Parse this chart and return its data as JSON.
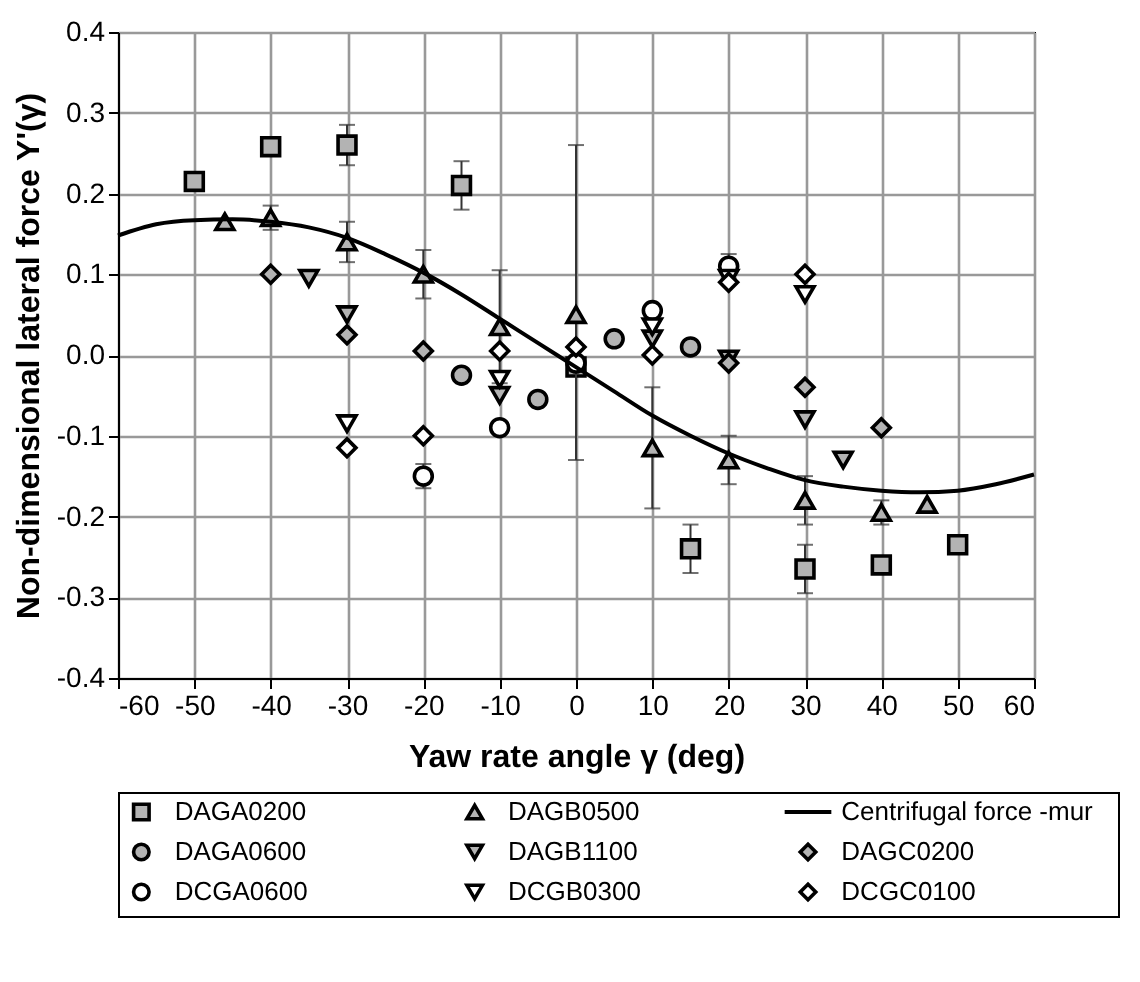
{
  "chart_data": {
    "type": "scatter",
    "xlabel": "Yaw rate angle γ (deg)",
    "ylabel": "Non-dimensional lateral force Y'(γ)",
    "xlim": [
      -60,
      60
    ],
    "xticks": [
      -60,
      -50,
      -40,
      -30,
      -20,
      -10,
      0,
      10,
      20,
      30,
      40,
      50,
      60
    ],
    "ylim": [
      -0.4,
      0.4
    ],
    "yticks": [
      {
        "value": -0.4,
        "label": "-0.4"
      },
      {
        "value": -0.3,
        "label": "-0.3"
      },
      {
        "value": -0.2,
        "label": "-0.2"
      },
      {
        "value": -0.1,
        "label": "-0.1"
      },
      {
        "value": 0,
        "label": "0.0"
      },
      {
        "value": 0.1,
        "label": "0.1"
      },
      {
        "value": 0.2,
        "label": "0.2"
      },
      {
        "value": 0.3,
        "label": "0.3"
      },
      {
        "value": 0.4,
        "label": "0.4"
      }
    ],
    "grid": true,
    "legend": "bottom",
    "series": [
      {
        "name": "DAGA0200",
        "marker": "square",
        "color": "#b3b3b3",
        "x": [
          -50,
          -40,
          -30,
          -15,
          0,
          15,
          30,
          40,
          50
        ],
        "values": [
          0.215,
          0.258,
          0.26,
          0.21,
          -0.015,
          -0.24,
          -0.265,
          -0.26,
          -0.235
        ],
        "errors": [
          null,
          0.01,
          0.025,
          0.03,
          null,
          0.03,
          0.03,
          0.01,
          null
        ]
      },
      {
        "name": "DAGA0600",
        "marker": "circle",
        "color": "#b3b3b3",
        "x": [
          -15,
          -5,
          5,
          15
        ],
        "values": [
          -0.025,
          -0.055,
          0.02,
          0.01
        ]
      },
      {
        "name": "DCGA0600",
        "marker": "circle",
        "color": "#ffffff",
        "x": [
          -20,
          -10,
          0,
          10,
          20
        ],
        "values": [
          -0.15,
          -0.09,
          -0.01,
          0.055,
          0.11
        ],
        "errors": [
          0.015,
          null,
          [
            -0.13,
            0.26
          ],
          null,
          0.015
        ]
      },
      {
        "name": "DAGB0500",
        "marker": "triangle",
        "color": "#b3b3b3",
        "x": [
          -46,
          -40,
          -30,
          -20,
          -10,
          0,
          10,
          20,
          30,
          40,
          46
        ],
        "values": [
          0.165,
          0.17,
          0.14,
          0.1,
          0.035,
          0.05,
          -0.115,
          -0.13,
          -0.18,
          -0.195,
          -0.185
        ],
        "errors": [
          null,
          0.015,
          0.025,
          0.03,
          0.07,
          null,
          0.075,
          0.03,
          0.03,
          0.015,
          null
        ]
      },
      {
        "name": "DAGB1100",
        "marker": "triangle-down",
        "color": "#b3b3b3",
        "x": [
          -35,
          -30,
          -10,
          10,
          20,
          30,
          35
        ],
        "values": [
          0.095,
          0.05,
          -0.05,
          0.02,
          -0.005,
          -0.08,
          -0.13
        ]
      },
      {
        "name": "DCGB0300",
        "marker": "triangle-down",
        "color": "#ffffff",
        "x": [
          -30,
          -10,
          10,
          20,
          30
        ],
        "values": [
          -0.085,
          -0.03,
          0.035,
          0.095,
          0.075
        ]
      },
      {
        "name": "Centrifugal force -mur",
        "type": "line",
        "color": "#000000",
        "x": [
          -60,
          -55,
          -50,
          -45,
          -40,
          -35,
          -30,
          -25,
          -20,
          -15,
          -10,
          -5,
          0,
          5,
          10,
          15,
          20,
          25,
          30,
          35,
          40,
          45,
          50,
          55,
          60
        ],
        "values": [
          0.148,
          0.162,
          0.167,
          0.168,
          0.165,
          0.158,
          0.145,
          0.125,
          0.102,
          0.075,
          0.045,
          0.015,
          -0.015,
          -0.045,
          -0.075,
          -0.1,
          -0.122,
          -0.14,
          -0.155,
          -0.163,
          -0.168,
          -0.17,
          -0.168,
          -0.16,
          -0.148
        ]
      },
      {
        "name": "DAGC0200",
        "marker": "diamond",
        "color": "#b3b3b3",
        "x": [
          -40,
          -30,
          -20,
          20,
          30,
          40
        ],
        "values": [
          0.1,
          0.025,
          0.005,
          -0.01,
          -0.04,
          -0.09
        ]
      },
      {
        "name": "DCGC0100",
        "marker": "diamond",
        "color": "#ffffff",
        "x": [
          -30,
          -20,
          -10,
          0,
          10,
          20,
          30
        ],
        "values": [
          -0.115,
          -0.1,
          0.005,
          0.01,
          0.0,
          0.09,
          0.1
        ]
      }
    ]
  }
}
